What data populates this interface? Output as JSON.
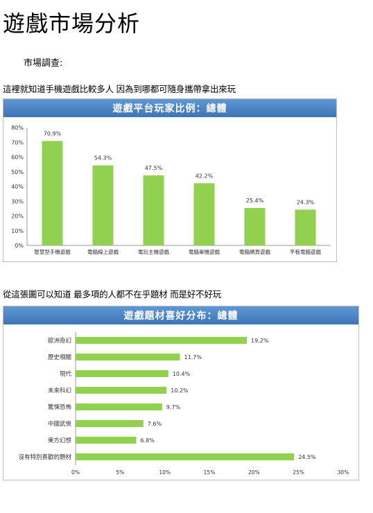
{
  "page": {
    "title": "遊戲市場分析",
    "subtitle": "市場調查:",
    "paragraph1": "這裡就知道手機遊戲比較多人 因為到哪都可隨身攜帶拿出來玩",
    "paragraph2": "從這張圖可以知道 最多項的人都不在乎題材 而是好不好玩"
  },
  "chart_data": [
    {
      "type": "bar",
      "title": "遊戲平台玩家比例：總體",
      "categories": [
        "智慧型手機遊戲",
        "電腦線上遊戲",
        "電玩主機遊戲",
        "電腦單機遊戲",
        "電腦網頁遊戲",
        "平板電腦遊戲"
      ],
      "values": [
        70.9,
        54.3,
        47.5,
        42.2,
        25.4,
        24.3
      ],
      "value_labels": [
        "70.9%",
        "54.3%",
        "47.5%",
        "42.2%",
        "25.4%",
        "24.3%"
      ],
      "ylim": [
        0,
        80
      ],
      "yticks": [
        "0%",
        "10%",
        "20%",
        "30%",
        "40%",
        "50%",
        "60%",
        "70%",
        "80%"
      ],
      "color": "#92d050",
      "grid": false
    },
    {
      "type": "bar",
      "orientation": "horizontal",
      "title": "遊戲題材喜好分布：總體",
      "categories": [
        "歐洲奇幻",
        "歷史相關",
        "現代",
        "未來科幻",
        "驚悚恐怖",
        "中國武俠",
        "東方幻想",
        "沒有特別喜歡的題材"
      ],
      "values": [
        19.2,
        11.7,
        10.4,
        10.2,
        9.7,
        7.6,
        6.8,
        24.5
      ],
      "value_labels": [
        "19.2%",
        "11.7%",
        "10.4%",
        "10.2%",
        "9.7%",
        "7.6%",
        "6.8%",
        "24.5%"
      ],
      "xlim": [
        0,
        30
      ],
      "xticks": [
        "0%",
        "5%",
        "10%",
        "15%",
        "20%",
        "25%",
        "30%"
      ],
      "color": "#92d050",
      "grid": false
    }
  ]
}
